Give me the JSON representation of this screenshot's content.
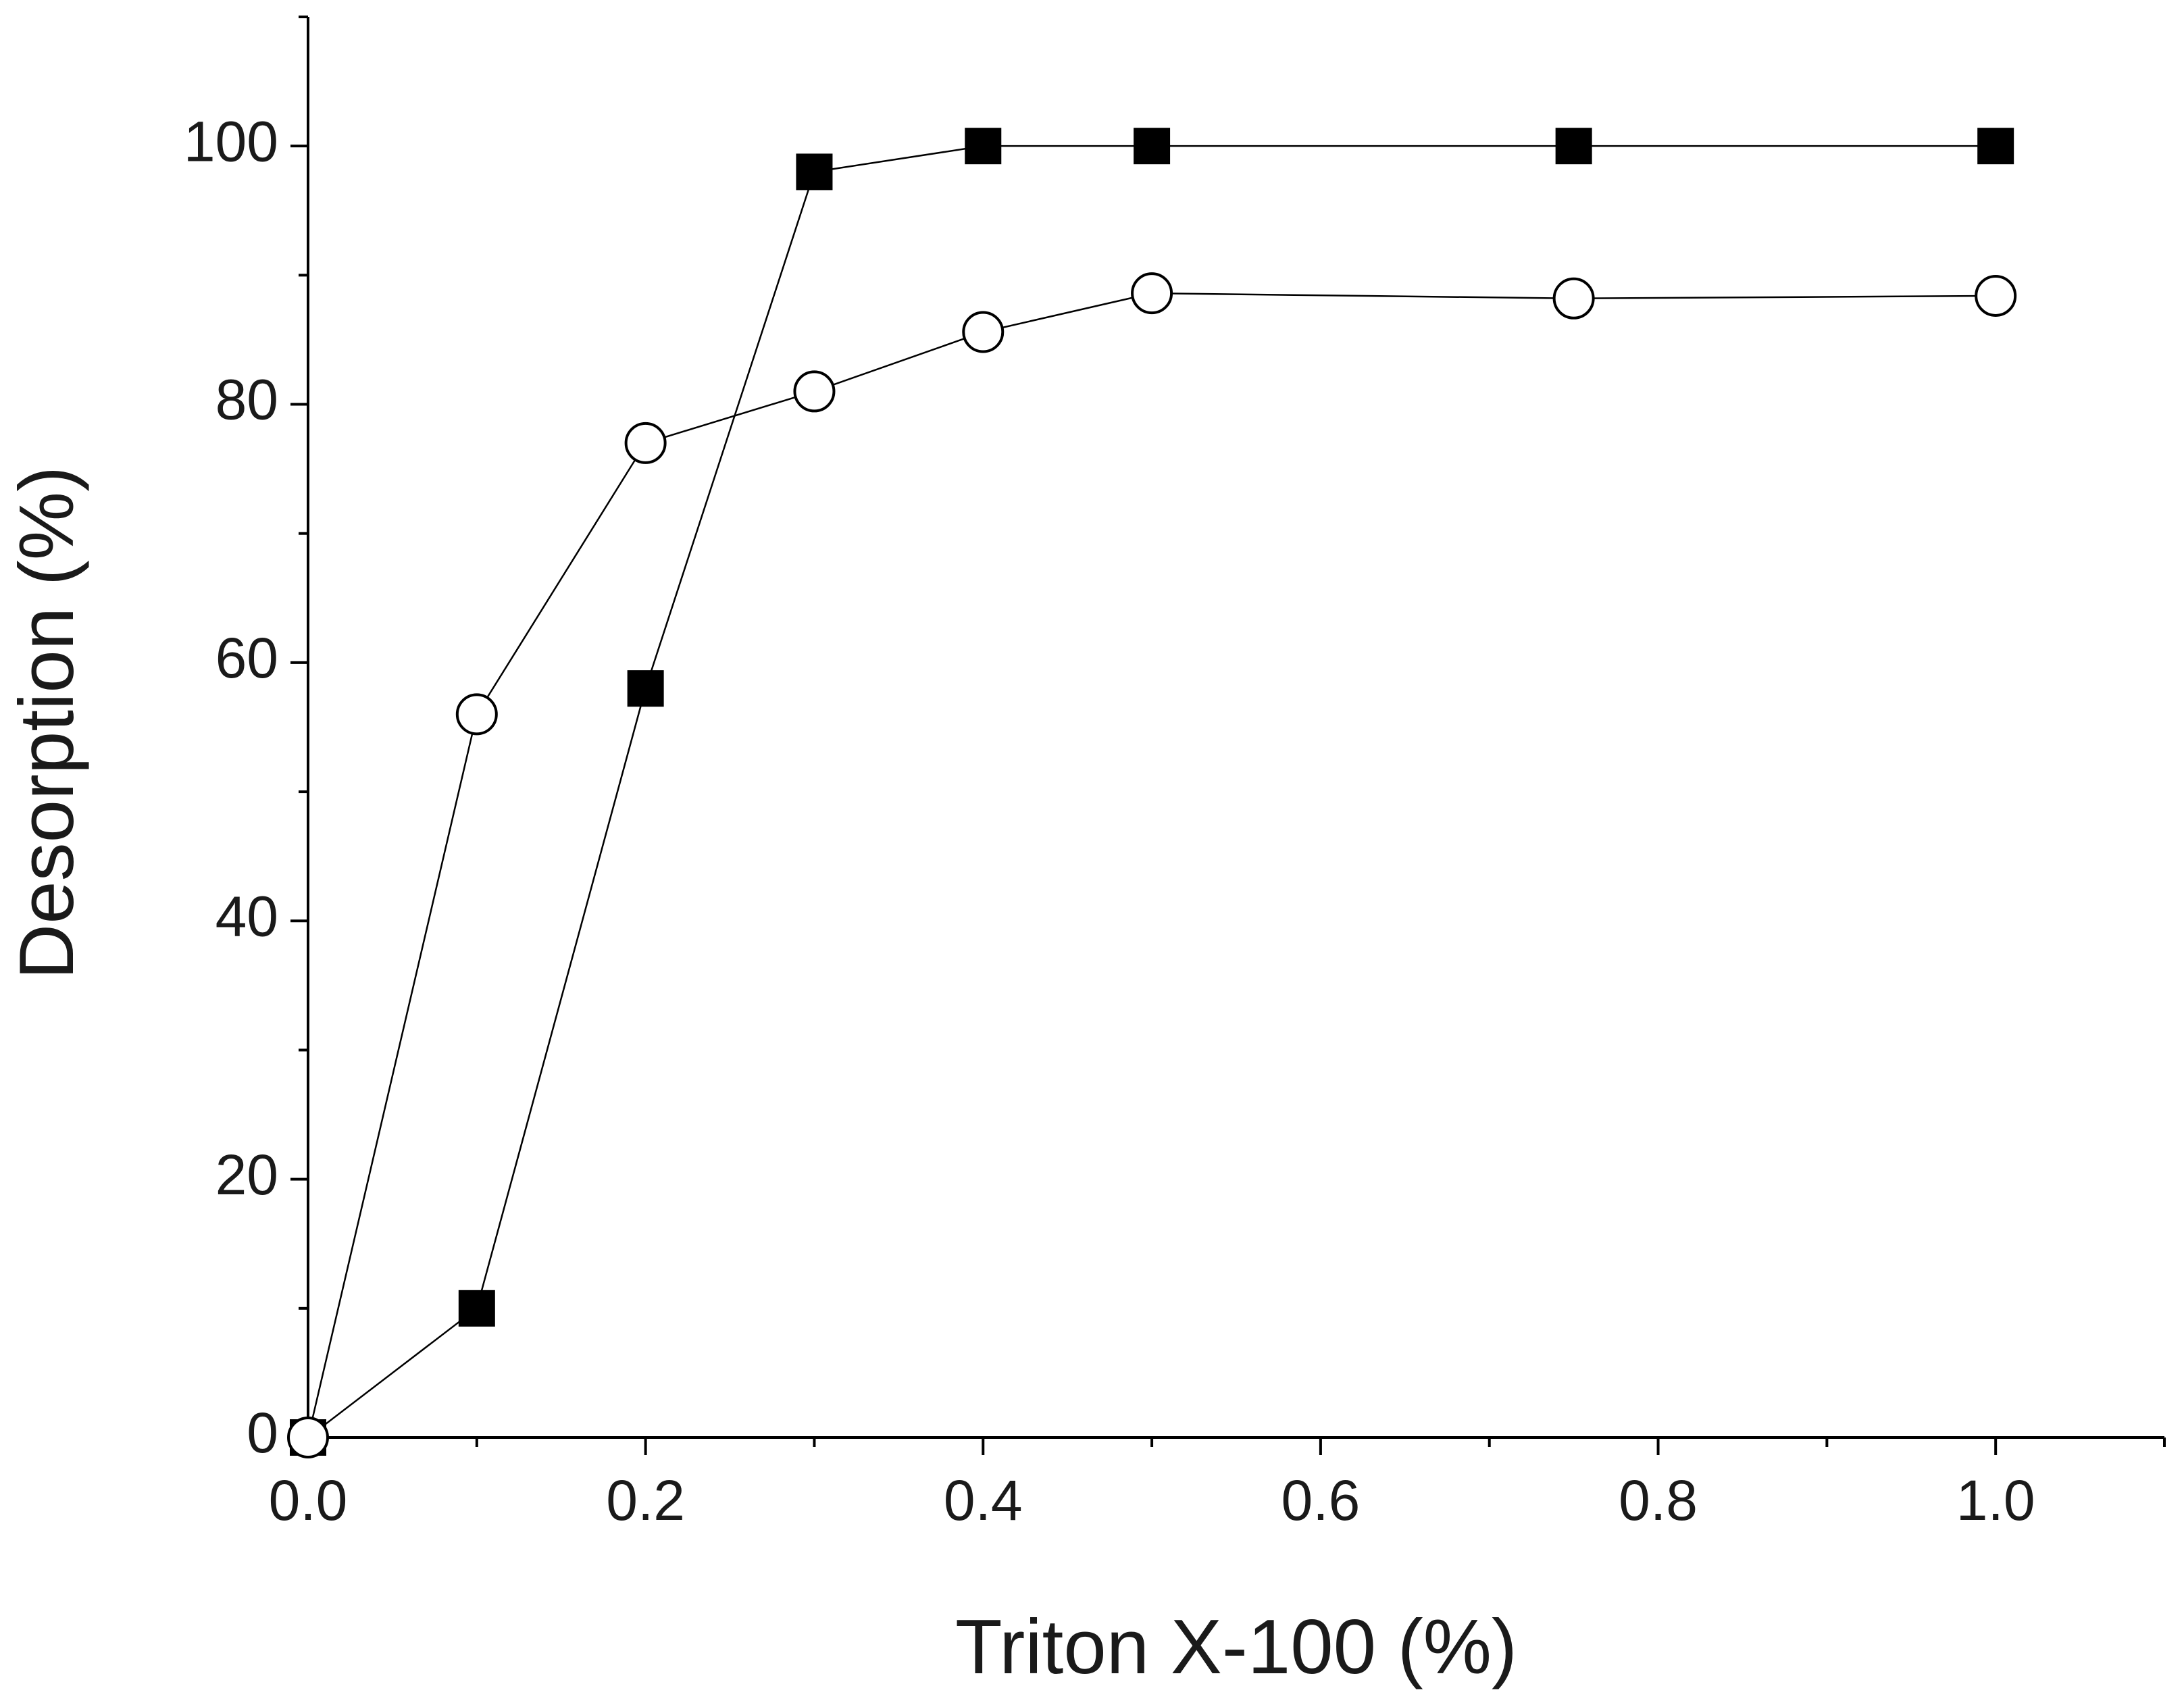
{
  "chart_data": {
    "type": "line",
    "x_label": "Triton X-100 (%)",
    "y_label": "Desorption (%)",
    "x": [
      0,
      0.1,
      0.2,
      0.3,
      0.4,
      0.5,
      0.75,
      1.0
    ],
    "series": [
      {
        "color": "#000000",
        "marker": "square",
        "values": [
          0,
          10,
          58,
          98,
          100,
          100,
          100,
          100
        ]
      },
      {
        "color": "#000000",
        "marker": "circle",
        "values": [
          0,
          56,
          77,
          81,
          85.6,
          88.6,
          88.2,
          88.4
        ]
      }
    ],
    "xlim": [
      0,
      1.1
    ],
    "ylim": [
      0,
      110
    ],
    "xticks": [
      {
        "value": 0,
        "label": "0.0"
      },
      0.2,
      0.4,
      0.6,
      0.8,
      {
        "value": 1,
        "label": "1.0"
      }
    ],
    "yticks": [
      0,
      20,
      40,
      60,
      80,
      100
    ],
    "xminorticks": [
      0.1,
      0.3,
      0.5,
      0.7,
      0.9,
      1.1
    ],
    "yminorticks": [
      10,
      30,
      50,
      70,
      90,
      110
    ],
    "grid": false
  }
}
